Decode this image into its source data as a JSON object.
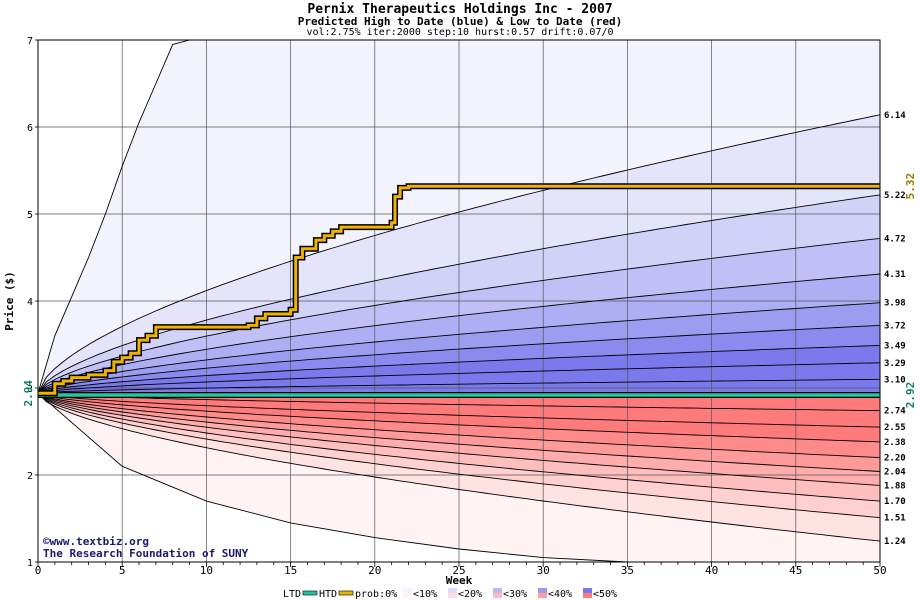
{
  "chart_data": {
    "type": "area",
    "title": "Pernix Therapeutics Holdings Inc - 2007",
    "subtitle": "Predicted High to Date (blue) &  Low to Date (red)",
    "parameters": "vol:2.75% iter:2000 step:10 hurst:0.57 drift:0.07/0",
    "xlabel": "Week",
    "ylabel": "Price ($)",
    "xlim": [
      0,
      50
    ],
    "ylim": [
      1,
      7
    ],
    "x_ticks": [
      "0",
      "5",
      "10",
      "15",
      "20",
      "25",
      "30",
      "35",
      "40",
      "45",
      "50"
    ],
    "y_ticks": [
      "1",
      "2",
      "3",
      "4",
      "5",
      "6",
      "7"
    ],
    "grid": true,
    "start_price": 2.94,
    "start_label": "2.94",
    "high_quantiles": [
      {
        "label": "6.14",
        "value": 6.14
      },
      {
        "label": "5.22",
        "value": 5.22
      },
      {
        "label": "4.72",
        "value": 4.72
      },
      {
        "label": "4.31",
        "value": 4.31
      },
      {
        "label": "3.98",
        "value": 3.98
      },
      {
        "label": "3.72",
        "value": 3.72
      },
      {
        "label": "3.49",
        "value": 3.49
      },
      {
        "label": "3.29",
        "value": 3.29
      },
      {
        "label": "3.10",
        "value": 3.1
      }
    ],
    "low_quantiles": [
      {
        "label": "2.74",
        "value": 2.74
      },
      {
        "label": "2.55",
        "value": 2.55
      },
      {
        "label": "2.38",
        "value": 2.38
      },
      {
        "label": "2.20",
        "value": 2.2
      },
      {
        "label": "2.04",
        "value": 2.04
      },
      {
        "label": "1.88",
        "value": 1.88
      },
      {
        "label": "1.70",
        "value": 1.7
      },
      {
        "label": "1.51",
        "value": 1.51
      },
      {
        "label": "1.24",
        "value": 1.24
      }
    ],
    "max_high_envelope": {
      "x": [
        0,
        1,
        2,
        3,
        4,
        5,
        6,
        7,
        8,
        9
      ],
      "y": [
        2.94,
        3.6,
        4.05,
        4.5,
        5.0,
        5.55,
        6.05,
        6.5,
        6.95,
        7.0
      ]
    },
    "min_low_envelope": {
      "x": [
        0,
        5,
        10,
        15,
        20,
        25,
        30,
        35,
        40,
        45,
        50
      ],
      "y": [
        2.94,
        2.1,
        1.7,
        1.45,
        1.28,
        1.15,
        1.05,
        1.0,
        1.0,
        1.0,
        1.0
      ]
    },
    "htd_series": {
      "name": "HTD",
      "color": "#f0b400",
      "x": [
        0,
        1,
        1.5,
        2,
        2.5,
        3,
        3.5,
        4,
        4.5,
        5,
        5.5,
        6,
        6.5,
        7,
        8,
        9,
        10,
        11,
        12,
        12.5,
        13,
        13.5,
        14,
        15,
        15.3,
        15.7,
        16,
        16.5,
        17,
        17.5,
        18,
        19,
        20,
        21,
        21.2,
        21.5,
        22,
        25,
        30,
        35,
        40,
        45,
        50
      ],
      "y": [
        2.94,
        3.05,
        3.08,
        3.12,
        3.12,
        3.15,
        3.15,
        3.2,
        3.3,
        3.35,
        3.4,
        3.55,
        3.6,
        3.7,
        3.7,
        3.7,
        3.7,
        3.7,
        3.7,
        3.72,
        3.8,
        3.85,
        3.85,
        3.9,
        4.5,
        4.6,
        4.6,
        4.7,
        4.75,
        4.8,
        4.85,
        4.85,
        4.85,
        4.9,
        5.2,
        5.3,
        5.32,
        5.32,
        5.32,
        5.32,
        5.32,
        5.32,
        5.32
      ],
      "end_label": "5.32"
    },
    "ltd_series": {
      "name": "LTD",
      "color": "#20c8a0",
      "x": [
        0,
        5,
        10,
        15,
        20,
        25,
        30,
        35,
        40,
        45,
        50
      ],
      "y": [
        2.92,
        2.92,
        2.92,
        2.92,
        2.92,
        2.92,
        2.92,
        2.92,
        2.92,
        2.92,
        2.92
      ],
      "end_label": "2.92"
    },
    "watermark_lines": [
      "©www.textbiz.org",
      "The Research Foundation of SUNY"
    ],
    "legend": {
      "placement": "bottom",
      "ltd_label": "LTD",
      "htd_label": "HTD",
      "prob_label": "prob:0%",
      "bands": [
        {
          "label": "<10%",
          "blue": "#f4f4fe",
          "red": "#fff4f4"
        },
        {
          "label": "<20%",
          "blue": "#dcdcfa",
          "red": "#ffdcdc"
        },
        {
          "label": "<30%",
          "blue": "#babaf6",
          "red": "#ffbcbc"
        },
        {
          "label": "<40%",
          "blue": "#9a9af2",
          "red": "#ff9c9c"
        },
        {
          "label": "<50%",
          "blue": "#7878ee",
          "red": "#ff7a7a"
        }
      ]
    },
    "colors": {
      "blue_bands": [
        "#f3f3fe",
        "#e4e4fb",
        "#d2d2f9",
        "#c0c0f6",
        "#aeaef4",
        "#9c9cf1",
        "#8a8aef",
        "#7a7aed"
      ],
      "red_bands": [
        "#fff3f3",
        "#ffe2e2",
        "#ffd0d0",
        "#ffbebe",
        "#ffacac",
        "#ff9a9a",
        "#ff8a8a",
        "#ff7a7a"
      ],
      "htd_value_label": "#a07800",
      "ltd_value_label": "#108060",
      "watermark": "#1a1a6e"
    }
  }
}
